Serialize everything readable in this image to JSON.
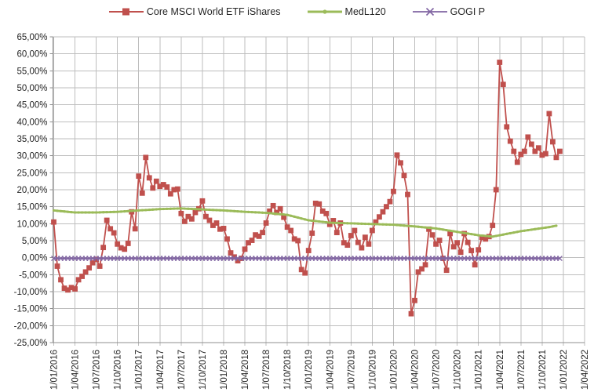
{
  "chart_data": {
    "type": "line",
    "title": "",
    "grid": true,
    "legend_position": "top",
    "colors": {
      "grid": "#bebebe",
      "axis": "#8f8f8f",
      "text": "#262626"
    },
    "y_axis": {
      "labels": [
        "65,00%",
        "60,00%",
        "55,00%",
        "50,00%",
        "45,00%",
        "40,00%",
        "35,00%",
        "30,00%",
        "25,00%",
        "20,00%",
        "15,00%",
        "10,00%",
        "5,00%",
        "0,00%",
        "-5,00%",
        "-10,00%",
        "-15,00%",
        "-20,00%",
        "-25,00%"
      ],
      "min": -25,
      "max": 65,
      "step": 5,
      "format": "percent-comma-decimals"
    },
    "x_axis": {
      "labels": [
        "1/01/2016",
        "1/04/2016",
        "1/07/2016",
        "1/10/2016",
        "1/01/2017",
        "1/04/2017",
        "1/07/2017",
        "1/10/2017",
        "1/01/2018",
        "1/04/2018",
        "1/07/2018",
        "1/10/2018",
        "1/01/2019",
        "1/04/2019",
        "1/07/2019",
        "1/10/2019",
        "1/01/2020",
        "1/04/2020",
        "1/07/2020",
        "1/10/2020",
        "1/01/2021",
        "1/04/2021",
        "1/07/2021",
        "1/10/2021",
        "1/01/2022",
        "1/04/2022"
      ],
      "interval": "quarterly",
      "label_rotation_deg": -90
    },
    "series": [
      {
        "name": "Core MSCI World ETF iShares",
        "color": "#C0504D",
        "marker": "square",
        "start_month": "2016-01",
        "points_per_month": 2,
        "values": [
          10.5,
          -2.5,
          -6.5,
          -9.0,
          -9.5,
          -8.8,
          -9.2,
          -6.5,
          -5.5,
          -4.2,
          -3.0,
          -1.5,
          -0.5,
          -2.5,
          3.0,
          11.0,
          8.5,
          7.3,
          4.0,
          2.9,
          2.5,
          4.2,
          13.5,
          8.5,
          24.0,
          19.0,
          29.5,
          23.5,
          20.5,
          22.5,
          21.0,
          21.5,
          20.8,
          18.8,
          20.0,
          20.2,
          13.0,
          10.7,
          12.1,
          11.4,
          13.3,
          14.4,
          16.7,
          12.1,
          11.0,
          9.5,
          10.2,
          8.4,
          8.6,
          5.5,
          1.4,
          0.2,
          -0.9,
          -0.2,
          2.5,
          4.4,
          5.1,
          6.7,
          6.3,
          7.4,
          10.2,
          13.7,
          15.3,
          13.3,
          14.4,
          11.9,
          9.0,
          8.0,
          5.5,
          5.0,
          -3.5,
          -4.5,
          2.1,
          7.2,
          16.0,
          15.8,
          13.7,
          13.0,
          9.8,
          10.9,
          7.4,
          10.2,
          4.4,
          3.7,
          6.5,
          8.0,
          4.5,
          2.9,
          6.0,
          4.0,
          8.0,
          10.5,
          12.0,
          13.5,
          15.0,
          16.5,
          19.5,
          30.2,
          27.9,
          24.2,
          18.6,
          -16.5,
          -12.6,
          -4.2,
          -3.3,
          -2.1,
          8.4,
          6.7,
          4.0,
          5.1,
          -0.2,
          -3.7,
          7.1,
          3.2,
          4.4,
          1.6,
          7.1,
          4.5,
          2.1,
          -2.1,
          2.3,
          6.0,
          5.5,
          6.2,
          9.5,
          20.0,
          57.5,
          51.0,
          38.5,
          34.3,
          31.3,
          28.1,
          30.4,
          31.3,
          35.5,
          33.4,
          31.3,
          32.3,
          30.2,
          30.6,
          42.4,
          34.1,
          29.5,
          31.3
        ]
      },
      {
        "name": "MedL120",
        "color": "#9BBB59",
        "marker": "dot",
        "keyframes": [
          [
            "2016-01",
            13.9
          ],
          [
            "2016-04",
            13.3
          ],
          [
            "2016-07",
            13.3
          ],
          [
            "2016-10",
            13.5
          ],
          [
            "2017-01",
            13.9
          ],
          [
            "2017-04",
            14.3
          ],
          [
            "2017-07",
            14.5
          ],
          [
            "2017-10",
            14.2
          ],
          [
            "2018-01",
            13.9
          ],
          [
            "2018-04",
            13.5
          ],
          [
            "2018-07",
            13.2
          ],
          [
            "2018-10",
            12.6
          ],
          [
            "2019-01",
            11.0
          ],
          [
            "2019-04",
            10.3
          ],
          [
            "2019-07",
            10.1
          ],
          [
            "2019-10",
            9.9
          ],
          [
            "2020-01",
            9.7
          ],
          [
            "2020-04",
            9.2
          ],
          [
            "2020-07",
            8.6
          ],
          [
            "2020-10",
            7.6
          ],
          [
            "2021-01",
            6.6
          ],
          [
            "2021-03",
            6.2
          ],
          [
            "2021-05",
            7.0
          ],
          [
            "2021-07",
            7.8
          ],
          [
            "2021-09",
            8.4
          ],
          [
            "2021-11",
            9.0
          ],
          [
            "2021-12",
            9.4
          ]
        ]
      },
      {
        "name": "GOGI P",
        "color": "#8064A2",
        "marker": "x",
        "start_month": "2016-01",
        "end_month": "2021-12",
        "constant_value": -0.2
      }
    ]
  }
}
